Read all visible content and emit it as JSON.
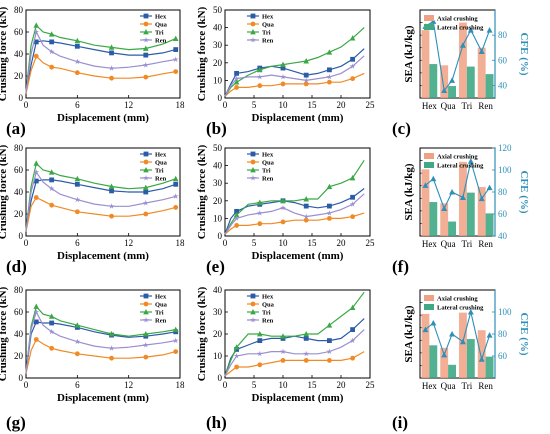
{
  "colors": {
    "Hex": "#2b5ca8",
    "Qua": "#f08a24",
    "Tri": "#3aa845",
    "Ren": "#9a8fd1",
    "axial": "#f0a184",
    "lateral": "#3fa884",
    "cfe": "#2e8fb8"
  },
  "chart_data": [
    {
      "panel": "(a)",
      "type": "line",
      "xlabel": "Displacement (mm)",
      "ylabel": "Crushing force (kN)",
      "xlim": [
        0,
        18
      ],
      "ylim": [
        0,
        80
      ],
      "xticks": [
        0,
        6,
        12,
        18
      ],
      "yticks": [
        0,
        20,
        40,
        60,
        80
      ],
      "series": [
        {
          "name": "Hex",
          "x": [
            0,
            0.6,
            1.2,
            2,
            3,
            4,
            6,
            8,
            10,
            12,
            14,
            16,
            17.5
          ],
          "y": [
            5,
            30,
            51,
            52,
            51,
            50,
            47,
            44,
            41,
            39,
            39,
            41,
            44
          ]
        },
        {
          "name": "Qua",
          "x": [
            0,
            0.6,
            1.2,
            2,
            3,
            4,
            6,
            8,
            10,
            12,
            14,
            16,
            17.5
          ],
          "y": [
            4,
            25,
            38,
            32,
            28,
            27,
            23,
            20,
            18,
            18,
            19,
            22,
            24
          ]
        },
        {
          "name": "Tri",
          "x": [
            0,
            0.6,
            1.2,
            2,
            3,
            4,
            6,
            8,
            10,
            12,
            14,
            16,
            17.5
          ],
          "y": [
            5,
            48,
            66,
            60,
            58,
            55,
            52,
            48,
            46,
            44,
            45,
            49,
            54
          ]
        },
        {
          "name": "Ren",
          "x": [
            0,
            0.6,
            1.2,
            2,
            3,
            4,
            6,
            8,
            10,
            12,
            14,
            16,
            17.5
          ],
          "y": [
            5,
            40,
            60,
            48,
            42,
            38,
            33,
            29,
            27,
            28,
            30,
            33,
            35
          ]
        }
      ]
    },
    {
      "panel": "(b)",
      "type": "line",
      "xlabel": "Displacement (mm)",
      "ylabel": "Crushing force (kN)",
      "xlim": [
        0,
        25
      ],
      "ylim": [
        0,
        50
      ],
      "xticks": [
        0,
        5,
        10,
        15,
        20,
        25
      ],
      "yticks": [
        0,
        10,
        20,
        30,
        40,
        50
      ],
      "series": [
        {
          "name": "Hex",
          "x": [
            0,
            1,
            2,
            4,
            6,
            8,
            10,
            12,
            14,
            16,
            18,
            20,
            22,
            24
          ],
          "y": [
            1,
            8,
            14,
            15,
            17,
            18,
            17,
            15,
            13,
            14,
            16,
            18,
            22,
            28
          ]
        },
        {
          "name": "Qua",
          "x": [
            0,
            1,
            2,
            4,
            6,
            8,
            10,
            12,
            14,
            16,
            18,
            20,
            22,
            24
          ],
          "y": [
            1,
            4,
            6,
            6,
            7,
            7,
            8,
            8,
            8,
            8,
            9,
            9,
            11,
            14
          ]
        },
        {
          "name": "Tri",
          "x": [
            0,
            1,
            2,
            4,
            6,
            8,
            10,
            12,
            14,
            16,
            18,
            20,
            22,
            24
          ],
          "y": [
            1,
            6,
            9,
            13,
            16,
            18,
            19,
            20,
            21,
            23,
            26,
            29,
            34,
            40
          ]
        },
        {
          "name": "Ren",
          "x": [
            0,
            1,
            2,
            4,
            6,
            8,
            10,
            12,
            14,
            16,
            18,
            20,
            22,
            24
          ],
          "y": [
            1,
            7,
            11,
            12,
            12,
            13,
            12,
            11,
            10,
            11,
            12,
            14,
            18,
            24
          ]
        }
      ]
    },
    {
      "panel": "(c)",
      "type": "bar",
      "ylabel": "SEA (kJ/kg)",
      "y2label": "CFE (%)",
      "categories": [
        "Hex",
        "Qua",
        "Tri",
        "Ren"
      ],
      "ylim": [
        0,
        14
      ],
      "y2lim": [
        30,
        100
      ],
      "yticks": [
        0,
        2,
        4,
        6,
        8,
        10,
        12,
        14
      ],
      "y2ticks": [
        40,
        60,
        80
      ],
      "legend": [
        "Axial crushing",
        "Lateral crushing"
      ],
      "axial": [
        10.8,
        5.2,
        12.0,
        8.0
      ],
      "lateral": [
        5.4,
        1.9,
        5.0,
        3.8
      ],
      "cfe": [
        [
          87,
          91
        ],
        [
          36,
          44
        ],
        [
          72,
          84
        ],
        [
          67,
          84
        ]
      ]
    },
    {
      "panel": "(d)",
      "type": "line",
      "xlabel": "Displacement (mm)",
      "ylabel": "Crushing force (kN)",
      "xlim": [
        0,
        18
      ],
      "ylim": [
        0,
        80
      ],
      "xticks": [
        0,
        6,
        12,
        18
      ],
      "yticks": [
        0,
        20,
        40,
        60,
        80
      ],
      "series": [
        {
          "name": "Hex",
          "x": [
            0,
            0.6,
            1.2,
            2,
            3,
            4,
            6,
            8,
            10,
            12,
            14,
            16,
            17.5
          ],
          "y": [
            5,
            32,
            50,
            51,
            51,
            50,
            47,
            44,
            41,
            40,
            40,
            43,
            47
          ]
        },
        {
          "name": "Qua",
          "x": [
            0,
            0.6,
            1.2,
            2,
            3,
            4,
            6,
            8,
            10,
            12,
            14,
            16,
            17.5
          ],
          "y": [
            4,
            27,
            35,
            32,
            28,
            26,
            22,
            20,
            18,
            18,
            20,
            23,
            26
          ]
        },
        {
          "name": "Tri",
          "x": [
            0,
            0.6,
            1.2,
            2,
            3,
            4,
            6,
            8,
            10,
            12,
            14,
            16,
            17.5
          ],
          "y": [
            5,
            45,
            66,
            60,
            58,
            55,
            52,
            48,
            45,
            43,
            44,
            48,
            52
          ]
        },
        {
          "name": "Ren",
          "x": [
            0,
            0.6,
            1.2,
            2,
            3,
            4,
            6,
            8,
            10,
            12,
            14,
            16,
            17.5
          ],
          "y": [
            5,
            40,
            58,
            49,
            43,
            38,
            33,
            29,
            27,
            27,
            30,
            33,
            36
          ]
        }
      ]
    },
    {
      "panel": "(e)",
      "type": "line",
      "xlabel": "Displacement (mm)",
      "ylabel": "Crushing force (kN)",
      "xlim": [
        0,
        25
      ],
      "ylim": [
        0,
        50
      ],
      "xticks": [
        0,
        5,
        10,
        15,
        20,
        25
      ],
      "yticks": [
        0,
        10,
        20,
        30,
        40,
        50
      ],
      "series": [
        {
          "name": "Hex",
          "x": [
            0,
            1,
            2,
            4,
            6,
            8,
            10,
            12,
            14,
            16,
            18,
            20,
            22,
            24
          ],
          "y": [
            1,
            10,
            14,
            17,
            18,
            19,
            20,
            19,
            17,
            16,
            17,
            19,
            22,
            27
          ]
        },
        {
          "name": "Qua",
          "x": [
            0,
            1,
            2,
            4,
            6,
            8,
            10,
            12,
            14,
            16,
            18,
            20,
            22,
            24
          ],
          "y": [
            1,
            4,
            6,
            6,
            7,
            7,
            8,
            9,
            9,
            9,
            10,
            10,
            11,
            13
          ]
        },
        {
          "name": "Tri",
          "x": [
            0,
            1,
            2,
            4,
            6,
            8,
            10,
            12,
            14,
            16,
            18,
            20,
            22,
            24
          ],
          "y": [
            1,
            7,
            12,
            18,
            19,
            20,
            20,
            20,
            21,
            21,
            28,
            30,
            33,
            43
          ]
        },
        {
          "name": "Ren",
          "x": [
            0,
            1,
            2,
            4,
            6,
            8,
            10,
            12,
            14,
            16,
            18,
            20,
            22,
            24
          ],
          "y": [
            1,
            6,
            10,
            12,
            13,
            14,
            16,
            13,
            11,
            12,
            13,
            15,
            18,
            24
          ]
        }
      ]
    },
    {
      "panel": "(f)",
      "type": "bar",
      "ylabel": "SEA (kJ/kg)",
      "y2label": "CFE (%)",
      "categories": [
        "Hex",
        "Qua",
        "Tri",
        "Ren"
      ],
      "ylim": [
        0,
        14
      ],
      "y2lim": [
        40,
        120
      ],
      "yticks": [
        0,
        2,
        4,
        6,
        8,
        10,
        12,
        14
      ],
      "y2ticks": [
        40,
        60,
        80,
        100,
        120
      ],
      "legend": [
        "Axial crushing",
        "Lateral crushing"
      ],
      "axial": [
        10.6,
        5.2,
        11.8,
        7.8
      ],
      "lateral": [
        5.4,
        2.3,
        6.9,
        3.6
      ],
      "cfe": [
        [
          86,
          92
        ],
        [
          65,
          80
        ],
        [
          75,
          108
        ],
        [
          74,
          84
        ]
      ]
    },
    {
      "panel": "(g)",
      "type": "line",
      "xlabel": "Displacement (mm)",
      "ylabel": "Crushing force (kN)",
      "xlim": [
        0,
        18
      ],
      "ylim": [
        0,
        80
      ],
      "xticks": [
        0,
        6,
        12,
        18
      ],
      "yticks": [
        0,
        20,
        40,
        60,
        80
      ],
      "series": [
        {
          "name": "Hex",
          "x": [
            0,
            0.6,
            1.2,
            2,
            3,
            4,
            6,
            8,
            10,
            12,
            14,
            16,
            17.5
          ],
          "y": [
            5,
            40,
            51,
            50,
            50,
            49,
            46,
            42,
            39,
            37,
            38,
            40,
            42
          ]
        },
        {
          "name": "Qua",
          "x": [
            0,
            0.6,
            1.2,
            2,
            3,
            4,
            6,
            8,
            10,
            12,
            14,
            16,
            17.5
          ],
          "y": [
            4,
            25,
            35,
            31,
            27,
            25,
            22,
            20,
            18,
            18,
            19,
            21,
            24
          ]
        },
        {
          "name": "Tri",
          "x": [
            0,
            0.6,
            1.2,
            2,
            3,
            4,
            6,
            8,
            10,
            12,
            14,
            16,
            17.5
          ],
          "y": [
            5,
            47,
            65,
            58,
            56,
            52,
            48,
            44,
            40,
            38,
            40,
            42,
            44
          ]
        },
        {
          "name": "Ren",
          "x": [
            0,
            0.6,
            1.2,
            2,
            3,
            4,
            6,
            8,
            10,
            12,
            14,
            16,
            17.5
          ],
          "y": [
            5,
            44,
            60,
            48,
            42,
            38,
            33,
            29,
            27,
            28,
            30,
            32,
            34
          ]
        }
      ]
    },
    {
      "panel": "(h)",
      "type": "line",
      "xlabel": "Displacement (mm)",
      "ylabel": "Crushing force (kN)",
      "xlim": [
        0,
        25
      ],
      "ylim": [
        0,
        40
      ],
      "xticks": [
        0,
        5,
        10,
        15,
        20,
        25
      ],
      "yticks": [
        0,
        10,
        20,
        30,
        40
      ],
      "series": [
        {
          "name": "Hex",
          "x": [
            0,
            1,
            2,
            4,
            6,
            8,
            10,
            12,
            14,
            16,
            18,
            20,
            22,
            24
          ],
          "y": [
            1,
            9,
            13,
            15,
            17,
            18,
            18,
            19,
            18,
            17,
            17,
            18,
            22,
            27
          ]
        },
        {
          "name": "Qua",
          "x": [
            0,
            1,
            2,
            4,
            6,
            8,
            10,
            12,
            14,
            16,
            18,
            20,
            22,
            24
          ],
          "y": [
            1,
            3,
            5,
            5,
            6,
            7,
            8,
            8,
            8,
            8,
            8,
            8,
            9,
            12
          ]
        },
        {
          "name": "Tri",
          "x": [
            0,
            1,
            2,
            4,
            6,
            8,
            10,
            12,
            14,
            16,
            18,
            20,
            22,
            24
          ],
          "y": [
            1,
            8,
            14,
            20,
            20,
            19,
            19,
            19,
            20,
            20,
            24,
            28,
            32,
            39
          ]
        },
        {
          "name": "Ren",
          "x": [
            0,
            1,
            2,
            4,
            6,
            8,
            10,
            12,
            14,
            16,
            18,
            20,
            22,
            24
          ],
          "y": [
            1,
            6,
            10,
            11,
            11,
            12,
            12,
            11,
            11,
            11,
            12,
            14,
            17,
            22
          ]
        }
      ]
    },
    {
      "panel": "(i)",
      "type": "bar",
      "ylabel": "SEA (kJ/kg)",
      "y2label": "CFE (%)",
      "categories": [
        "Hex",
        "Qua",
        "Tri",
        "Ren"
      ],
      "ylim": [
        0,
        14
      ],
      "y2lim": [
        40,
        120
      ],
      "yticks": [
        0,
        2,
        4,
        6,
        8,
        10,
        12,
        14
      ],
      "y2ticks": [
        60,
        80,
        100
      ],
      "legend": [
        "Axial crushing",
        "Lateral crushing"
      ],
      "axial": [
        10.2,
        4.8,
        10.4,
        7.6
      ],
      "lateral": [
        5.2,
        2.1,
        6.2,
        3.4
      ],
      "cfe": [
        [
          84,
          90
        ],
        [
          61,
          80
        ],
        [
          73,
          100
        ],
        [
          57,
          79
        ]
      ]
    }
  ]
}
